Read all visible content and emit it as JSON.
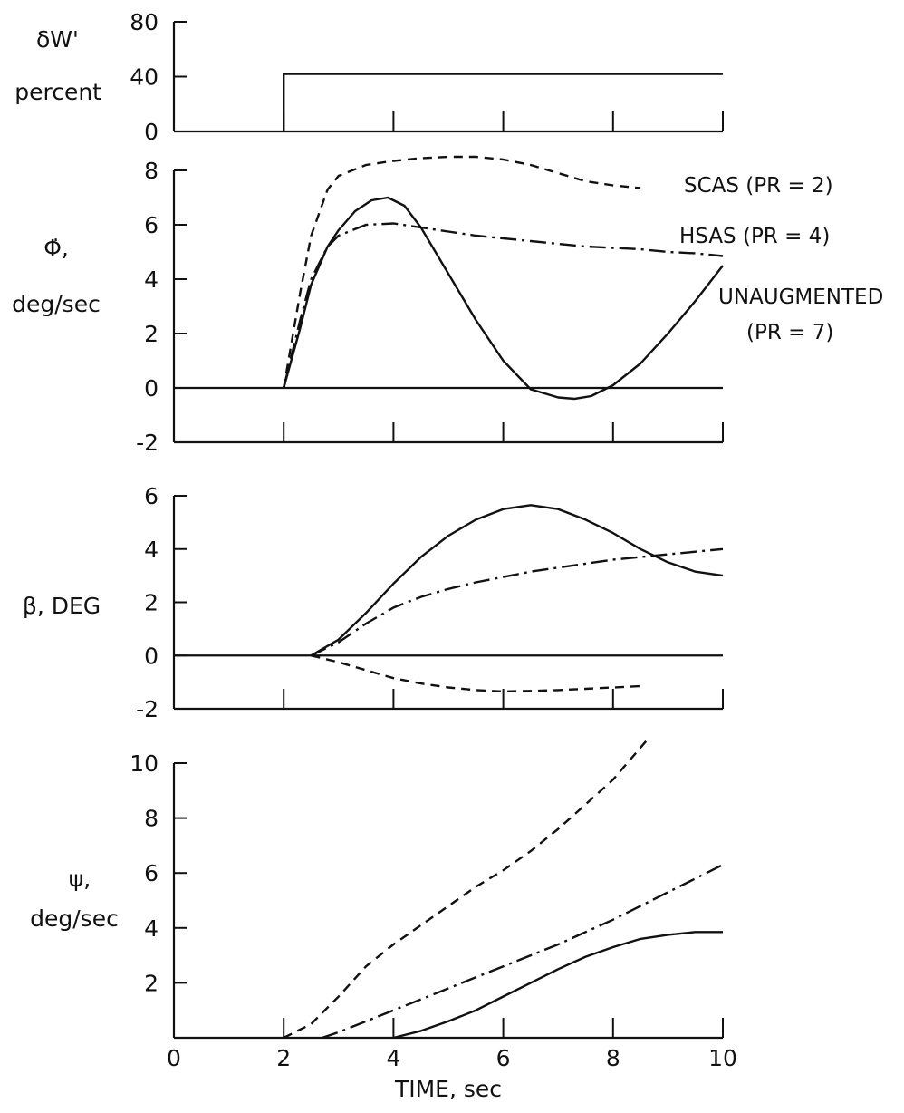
{
  "chart_data": [
    {
      "type": "line",
      "ylabel": "δ_W', percent",
      "ylabel_lines": [
        "δW'",
        "percent"
      ],
      "xlim": [
        0,
        10
      ],
      "ylim": [
        0,
        80
      ],
      "yticks": [
        "0",
        "40",
        "80"
      ],
      "grid": false,
      "series": [
        {
          "style": "solid",
          "x": [
            2,
            2,
            10
          ],
          "y": [
            0,
            42,
            42
          ]
        }
      ]
    },
    {
      "type": "line",
      "ylabel": "Φ̇, deg/sec",
      "ylabel_lines": [
        "Φ̇,",
        "deg/sec"
      ],
      "xlim": [
        0,
        10
      ],
      "ylim": [
        -2,
        8
      ],
      "yticks": [
        "-2",
        "0",
        "2",
        "4",
        "6",
        "8"
      ],
      "grid": false,
      "series": [
        {
          "name": "SCAS (PR = 2)",
          "style": "dashed",
          "x": [
            2,
            2.3,
            2.5,
            2.8,
            3.0,
            3.5,
            4.0,
            4.5,
            5.0,
            5.5,
            6.0,
            6.5,
            7.0,
            7.5,
            8.0,
            8.5
          ],
          "y": [
            0,
            3.5,
            5.6,
            7.3,
            7.8,
            8.2,
            8.35,
            8.45,
            8.5,
            8.5,
            8.4,
            8.2,
            7.9,
            7.6,
            7.45,
            7.35
          ]
        },
        {
          "name": "HSAS (PR = 4)",
          "style": "dashdot",
          "x": [
            2,
            2.3,
            2.5,
            2.8,
            3.0,
            3.5,
            4.0,
            4.5,
            5.0,
            5.5,
            6.0,
            6.5,
            7.0,
            7.5,
            8.0,
            8.5,
            9.0,
            9.5,
            10.0
          ],
          "y": [
            0,
            2.5,
            4.0,
            5.2,
            5.6,
            6.0,
            6.05,
            5.9,
            5.75,
            5.6,
            5.5,
            5.4,
            5.3,
            5.2,
            5.15,
            5.1,
            5.0,
            4.95,
            4.85
          ]
        },
        {
          "name": "UNAUGMENTED (PR = 7)",
          "style": "solid",
          "x": [
            2,
            2.3,
            2.5,
            2.8,
            3.0,
            3.3,
            3.6,
            3.9,
            4.2,
            4.5,
            5.0,
            5.5,
            6.0,
            6.5,
            7.0,
            7.3,
            7.6,
            8.0,
            8.5,
            9.0,
            9.5,
            10.0
          ],
          "y": [
            0,
            2.2,
            3.8,
            5.2,
            5.8,
            6.5,
            6.9,
            7.0,
            6.7,
            5.9,
            4.2,
            2.5,
            1.0,
            -0.05,
            -0.35,
            -0.4,
            -0.3,
            0.1,
            0.9,
            2.0,
            3.2,
            4.5
          ]
        }
      ],
      "annotations": [
        "SCAS (PR = 2)",
        "HSAS (PR = 4)",
        "UNAUGMENTED",
        "(PR = 7)"
      ]
    },
    {
      "type": "line",
      "ylabel": "β, DEG",
      "xlim": [
        0,
        10
      ],
      "ylim": [
        -2,
        6
      ],
      "yticks": [
        "-2",
        "0",
        "2",
        "4",
        "6"
      ],
      "grid": false,
      "series": [
        {
          "style": "dashed",
          "x": [
            2.5,
            3.0,
            3.5,
            4.0,
            4.5,
            5.0,
            5.5,
            6.0,
            6.5,
            7.0,
            7.5,
            8.0,
            8.5
          ],
          "y": [
            0,
            -0.25,
            -0.55,
            -0.85,
            -1.05,
            -1.2,
            -1.3,
            -1.35,
            -1.33,
            -1.3,
            -1.25,
            -1.2,
            -1.15
          ]
        },
        {
          "style": "dashdot",
          "x": [
            2.5,
            3.0,
            3.5,
            4.0,
            4.5,
            5.0,
            5.5,
            6.0,
            6.5,
            7.0,
            7.5,
            8.0,
            8.5,
            9.0,
            9.5,
            10.0
          ],
          "y": [
            0,
            0.5,
            1.2,
            1.8,
            2.2,
            2.5,
            2.75,
            2.95,
            3.15,
            3.3,
            3.45,
            3.6,
            3.7,
            3.8,
            3.9,
            4.0
          ]
        },
        {
          "style": "solid",
          "x": [
            2.5,
            3.0,
            3.5,
            4.0,
            4.5,
            5.0,
            5.5,
            6.0,
            6.5,
            7.0,
            7.5,
            8.0,
            8.5,
            9.0,
            9.5,
            10.0
          ],
          "y": [
            0,
            0.6,
            1.6,
            2.7,
            3.7,
            4.5,
            5.1,
            5.5,
            5.65,
            5.5,
            5.1,
            4.6,
            4.0,
            3.5,
            3.15,
            3.0
          ]
        }
      ]
    },
    {
      "type": "line",
      "ylabel": "ψ, deg/sec",
      "ylabel_lines": [
        "ψ,",
        "deg/sec"
      ],
      "xlabel": "TIME, sec",
      "xlim": [
        0,
        10
      ],
      "ylim": [
        0,
        10
      ],
      "xticks": [
        "0",
        "2",
        "4",
        "6",
        "8",
        "10"
      ],
      "yticks": [
        "2",
        "4",
        "6",
        "8",
        "10"
      ],
      "grid": false,
      "series": [
        {
          "style": "dashed",
          "x": [
            2,
            2.5,
            3.0,
            3.5,
            4.0,
            4.5,
            5.0,
            5.5,
            6.0,
            6.5,
            7.0,
            7.5,
            8.0,
            8.3,
            8.6
          ],
          "y": [
            0,
            0.5,
            1.5,
            2.6,
            3.4,
            4.1,
            4.8,
            5.5,
            6.1,
            6.8,
            7.6,
            8.5,
            9.4,
            10.1,
            10.8
          ]
        },
        {
          "style": "dashdot",
          "x": [
            2.7,
            3.0,
            3.5,
            4.0,
            4.5,
            5.0,
            5.5,
            6.0,
            6.5,
            7.0,
            7.5,
            8.0,
            8.5,
            9.0,
            9.5,
            10.0
          ],
          "y": [
            0,
            0.2,
            0.6,
            1.0,
            1.4,
            1.8,
            2.2,
            2.6,
            3.0,
            3.4,
            3.85,
            4.3,
            4.8,
            5.3,
            5.8,
            6.3
          ]
        },
        {
          "style": "solid",
          "x": [
            4.0,
            4.5,
            5.0,
            5.5,
            6.0,
            6.5,
            7.0,
            7.5,
            8.0,
            8.5,
            9.0,
            9.5,
            10.0
          ],
          "y": [
            0,
            0.25,
            0.6,
            1.0,
            1.5,
            2.0,
            2.5,
            2.95,
            3.3,
            3.6,
            3.75,
            3.85,
            3.85
          ]
        }
      ]
    }
  ]
}
